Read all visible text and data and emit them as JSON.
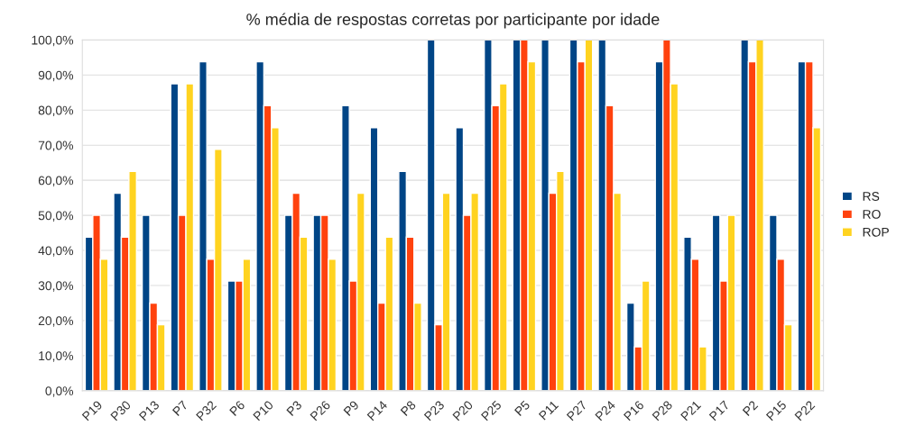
{
  "chart_data": {
    "type": "bar",
    "title": "% média de respostas corretas por participante por idade",
    "categories": [
      "P19",
      "P30",
      "P13",
      "P7",
      "P32",
      "P6",
      "P10",
      "P3",
      "P26",
      "P9",
      "P14",
      "P8",
      "P23",
      "P20",
      "P25",
      "P5",
      "P11",
      "P27",
      "P24",
      "P16",
      "P28",
      "P21",
      "P17",
      "P2",
      "P15",
      "P22"
    ],
    "series": [
      {
        "name": "RS",
        "color": "#004586",
        "values": [
          43.8,
          56.3,
          50,
          87.5,
          93.8,
          31.3,
          93.8,
          50,
          50,
          81.3,
          75,
          62.5,
          100,
          75,
          100,
          100,
          100,
          100,
          100,
          25,
          93.8,
          43.8,
          50,
          100,
          50,
          93.8
        ]
      },
      {
        "name": "RO",
        "color": "#ff420e",
        "values": [
          50,
          43.8,
          25,
          50,
          37.5,
          31.3,
          81.3,
          56.3,
          50,
          31.3,
          25,
          43.8,
          18.8,
          50,
          81.3,
          100,
          56.3,
          93.8,
          81.3,
          12.5,
          100,
          37.5,
          31.3,
          93.8,
          37.5,
          93.8
        ]
      },
      {
        "name": "ROP",
        "color": "#ffd320",
        "values": [
          37.5,
          62.5,
          18.8,
          87.5,
          68.8,
          37.5,
          75,
          43.8,
          37.5,
          56.3,
          43.8,
          25,
          56.3,
          56.3,
          87.5,
          93.8,
          62.5,
          100,
          56.3,
          31.3,
          87.5,
          12.5,
          50,
          100,
          18.8,
          75
        ]
      }
    ],
    "ylim": [
      0,
      100
    ],
    "yticks": [
      {
        "value": 0,
        "label": "0,0%"
      },
      {
        "value": 10,
        "label": "10,0%"
      },
      {
        "value": 20,
        "label": "20,0%"
      },
      {
        "value": 30,
        "label": "30,0%"
      },
      {
        "value": 40,
        "label": "40,0%"
      },
      {
        "value": 50,
        "label": "50,0%"
      },
      {
        "value": 60,
        "label": "60,0%"
      },
      {
        "value": 70,
        "label": "70,0%"
      },
      {
        "value": 80,
        "label": "80,0%"
      },
      {
        "value": 90,
        "label": "90,0%"
      },
      {
        "value": 100,
        "label": "100,0%"
      }
    ],
    "grid": "y",
    "legend": "right"
  }
}
